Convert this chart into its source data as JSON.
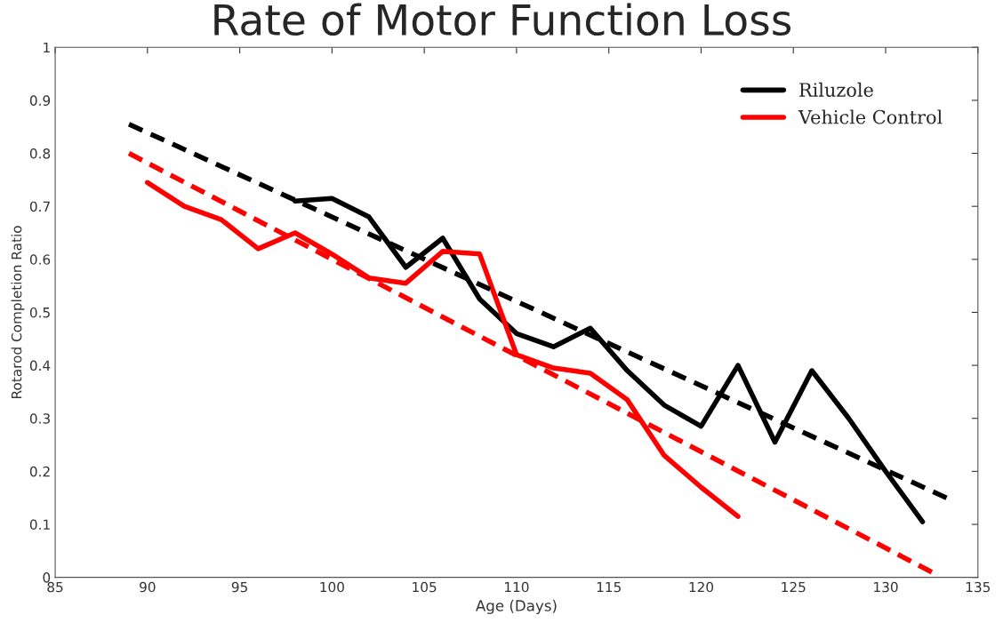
{
  "chart_data": {
    "type": "line",
    "title": "Rate of Motor Function Loss",
    "xlabel": "Age (Days)",
    "ylabel": "Rotarod Completion Ratio",
    "xlim": [
      85,
      135
    ],
    "xticks": [
      85,
      90,
      95,
      100,
      105,
      110,
      115,
      120,
      125,
      130,
      135
    ],
    "ylim": [
      0,
      1
    ],
    "yticks": [
      0,
      0.1,
      0.2,
      0.3,
      0.4,
      0.5,
      0.6,
      0.7,
      0.8,
      0.9,
      1
    ],
    "grid": false,
    "legend": "top right",
    "line_style": "solid",
    "marker": "none",
    "series": [
      {
        "name": "Riluzole",
        "color": "#000000",
        "x": [
          98,
          100,
          102,
          104,
          106,
          108,
          110,
          112,
          114,
          116,
          118,
          120,
          122,
          124,
          126,
          128,
          130,
          132
        ],
        "values": [
          0.71,
          0.715,
          0.68,
          0.585,
          0.64,
          0.525,
          0.46,
          0.435,
          0.47,
          0.39,
          0.325,
          0.285,
          0.4,
          0.255,
          0.39,
          0.3,
          0.2,
          0.105
        ]
      },
      {
        "name": "Vehicle Control",
        "color": "#ff0000",
        "x": [
          90,
          92,
          94,
          96,
          98,
          100,
          102,
          104,
          106,
          108,
          110,
          112,
          114,
          116,
          118,
          120,
          122
        ],
        "values": [
          0.745,
          0.7,
          0.675,
          0.62,
          0.65,
          0.61,
          0.565,
          0.555,
          0.615,
          0.61,
          0.42,
          0.395,
          0.385,
          0.335,
          0.23,
          0.17,
          0.115
        ]
      },
      {
        "color": "#000000",
        "line_style": "dashed",
        "x": [
          89,
          133.3
        ],
        "values": [
          0.855,
          0.15
        ]
      },
      {
        "color": "#ff0000",
        "line_style": "dashed",
        "x": [
          89,
          132.5
        ],
        "values": [
          0.8,
          0.01
        ]
      }
    ]
  }
}
